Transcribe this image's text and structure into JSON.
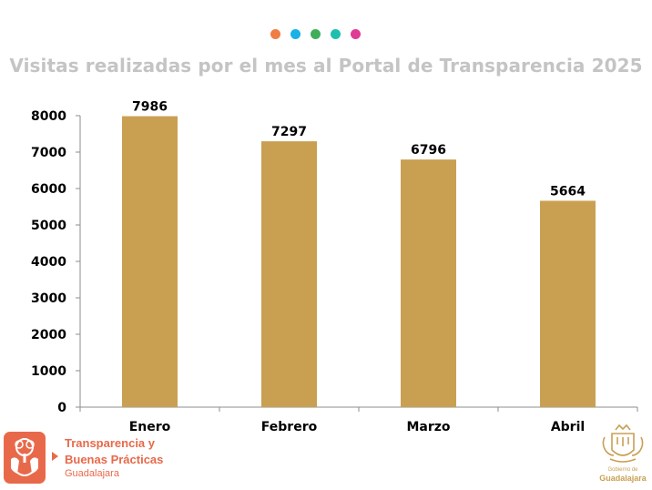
{
  "colors": {
    "bar": "#c9a052",
    "title": "#c4c4c4",
    "brand": "#e8694a",
    "gold": "#c9a054",
    "dots": [
      "#ef7d45",
      "#19b1e6",
      "#3fae5b",
      "#1fbfb0",
      "#e03a95"
    ]
  },
  "title": "Visitas realizadas por el mes al Portal de Transparencia 2025",
  "chart_data": {
    "type": "bar",
    "title": "Visitas realizadas por el mes al Portal de Transparencia 2025",
    "categories": [
      "Enero",
      "Febrero",
      "Marzo",
      "Abril"
    ],
    "values": [
      7986,
      7297,
      6796,
      5664
    ],
    "xlabel": "",
    "ylabel": "",
    "ylim": [
      0,
      8000
    ],
    "yticks": [
      0,
      1000,
      2000,
      3000,
      4000,
      5000,
      6000,
      7000,
      8000
    ],
    "grid": false,
    "legend": "none",
    "data_labels": true
  },
  "footer": {
    "brand_line1": "Transparencia y",
    "brand_line2": "Buenas Prácticas",
    "brand_city": "Guadalajara",
    "brand_logo_icon": "tree-lions-shield-icon",
    "gov_small": "Gobierno de",
    "gov_big": "Guadalajara",
    "gov_logo_icon": "guadalajara-coat-of-arms-icon"
  }
}
